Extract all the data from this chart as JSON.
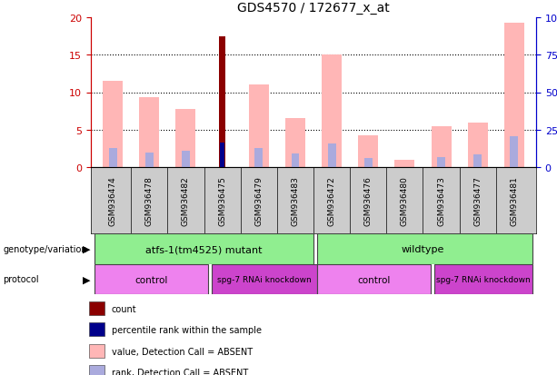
{
  "title": "GDS4570 / 172677_x_at",
  "samples": [
    "GSM936474",
    "GSM936478",
    "GSM936482",
    "GSM936475",
    "GSM936479",
    "GSM936483",
    "GSM936472",
    "GSM936476",
    "GSM936480",
    "GSM936473",
    "GSM936477",
    "GSM936481"
  ],
  "count_values": [
    0,
    0,
    0,
    17.5,
    0,
    0,
    0,
    0,
    0,
    0,
    0,
    0
  ],
  "percentile_rank": [
    0,
    0,
    0,
    3.3,
    0,
    0,
    0,
    0,
    0,
    0,
    0,
    0
  ],
  "pink_bar_values": [
    11.5,
    9.3,
    7.8,
    0,
    11.0,
    6.5,
    15.0,
    4.3,
    1.0,
    5.5,
    6.0,
    19.3
  ],
  "light_blue_bar_values": [
    2.5,
    2.0,
    2.2,
    0,
    2.6,
    1.8,
    3.1,
    1.2,
    0,
    1.3,
    1.7,
    4.1
  ],
  "ylim_left": [
    0,
    20
  ],
  "ylim_right": [
    0,
    100
  ],
  "yticks_left": [
    0,
    5,
    10,
    15,
    20
  ],
  "yticks_right": [
    0,
    25,
    50,
    75,
    100
  ],
  "ytick_labels_right": [
    "0",
    "25",
    "50",
    "75",
    "100%"
  ],
  "bg_color": "#ffffff",
  "plot_bg_color": "#ffffff",
  "left_axis_color": "#cc0000",
  "right_axis_color": "#0000cc",
  "count_color": "#8b0000",
  "percentile_color": "#00008b",
  "pink_color": "#ffb6b6",
  "light_blue_color": "#aaaadd",
  "grid_color": "#000000",
  "sample_bg_color": "#cccccc",
  "genotype_color": "#90ee90",
  "protocol_light_color": "#ee82ee",
  "protocol_dark_color": "#cc44cc",
  "legend_items": [
    {
      "label": "count",
      "color": "#8b0000"
    },
    {
      "label": "percentile rank within the sample",
      "color": "#00008b"
    },
    {
      "label": "value, Detection Call = ABSENT",
      "color": "#ffb6b6"
    },
    {
      "label": "rank, Detection Call = ABSENT",
      "color": "#aaaadd"
    }
  ]
}
